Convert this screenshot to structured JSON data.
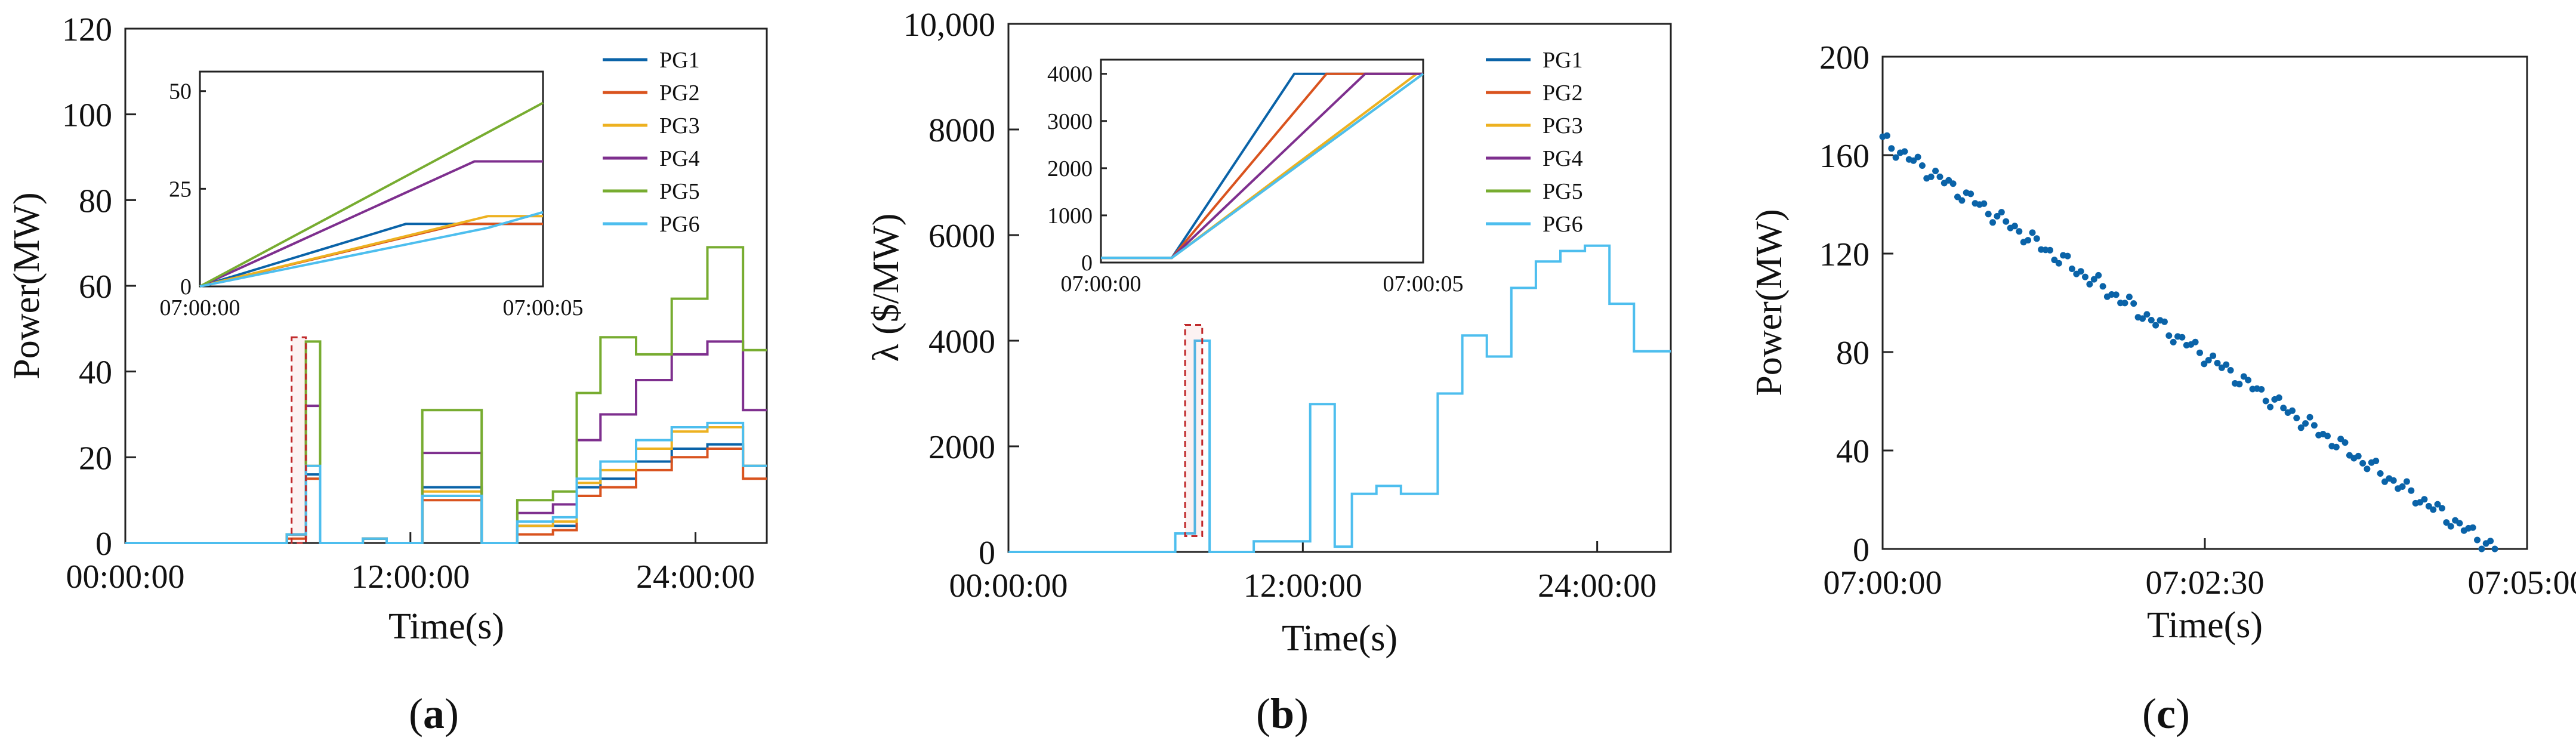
{
  "chart_data": [
    {
      "id": "a",
      "type": "line",
      "panel_label": "a",
      "xlabel": "Time(s)",
      "ylabel": "Power(MW)",
      "xlim": [
        0,
        27
      ],
      "ylim": [
        0,
        120
      ],
      "xticks": [
        {
          "v": 0,
          "label": "00:00:00"
        },
        {
          "v": 12,
          "label": "12:00:00"
        },
        {
          "v": 24,
          "label": "24:00:00"
        }
      ],
      "yticks": [
        0,
        20,
        40,
        60,
        80,
        100,
        120
      ],
      "series": [
        {
          "name": "PG1",
          "color": "#0a63a8",
          "x": [
            0,
            6.8,
            6.8,
            7.6,
            7.6,
            8.2,
            8.2,
            10,
            10,
            11,
            11,
            12.5,
            12.5,
            15,
            15,
            16.5,
            16.5,
            18,
            18,
            19,
            19,
            20,
            20,
            21.5,
            21.5,
            23,
            23,
            24.5,
            24.5,
            26,
            26,
            27
          ],
          "y": [
            0,
            0,
            2,
            2,
            16,
            16,
            0,
            0,
            1,
            1,
            0,
            0,
            13,
            13,
            0,
            0,
            4,
            4,
            4,
            4,
            13,
            13,
            15,
            15,
            19,
            19,
            22,
            22,
            23,
            23,
            18,
            18
          ]
        },
        {
          "name": "PG2",
          "color": "#d9531e",
          "x": [
            0,
            6.8,
            6.8,
            7.6,
            7.6,
            8.2,
            8.2,
            10,
            10,
            11,
            11,
            12.5,
            12.5,
            15,
            15,
            16.5,
            16.5,
            18,
            18,
            19,
            19,
            20,
            20,
            21.5,
            21.5,
            23,
            23,
            24.5,
            24.5,
            26,
            26,
            27
          ],
          "y": [
            0,
            0,
            1,
            1,
            15,
            15,
            0,
            0,
            1,
            1,
            0,
            0,
            10,
            10,
            0,
            0,
            2,
            2,
            3,
            3,
            11,
            11,
            13,
            13,
            17,
            17,
            20,
            20,
            22,
            22,
            15,
            15
          ]
        },
        {
          "name": "PG3",
          "color": "#edb120",
          "x": [
            0,
            6.8,
            6.8,
            7.6,
            7.6,
            8.2,
            8.2,
            10,
            10,
            11,
            11,
            12.5,
            12.5,
            15,
            15,
            16.5,
            16.5,
            18,
            18,
            19,
            19,
            20,
            20,
            21.5,
            21.5,
            23,
            23,
            24.5,
            24.5,
            26,
            26,
            27
          ],
          "y": [
            0,
            0,
            2,
            2,
            18,
            18,
            0,
            0,
            1,
            1,
            0,
            0,
            12,
            12,
            0,
            0,
            4,
            4,
            5,
            5,
            14,
            14,
            17,
            17,
            22,
            22,
            26,
            26,
            27,
            27,
            18,
            18
          ]
        },
        {
          "name": "PG4",
          "color": "#7e2f8e",
          "x": [
            0,
            6.8,
            6.8,
            7.6,
            7.6,
            8.2,
            8.2,
            10,
            10,
            11,
            11,
            12.5,
            12.5,
            15,
            15,
            16.5,
            16.5,
            18,
            18,
            19,
            19,
            20,
            20,
            21.5,
            21.5,
            23,
            23,
            24.5,
            24.5,
            26,
            26,
            27
          ],
          "y": [
            0,
            0,
            2,
            2,
            32,
            32,
            0,
            0,
            1,
            1,
            0,
            0,
            21,
            21,
            0,
            0,
            7,
            7,
            9,
            9,
            24,
            24,
            30,
            30,
            38,
            38,
            44,
            44,
            47,
            47,
            31,
            31
          ]
        },
        {
          "name": "PG5",
          "color": "#77ac30",
          "x": [
            0,
            6.8,
            6.8,
            7.6,
            7.6,
            8.2,
            8.2,
            10,
            10,
            11,
            11,
            12.5,
            12.5,
            15,
            15,
            16.5,
            16.5,
            18,
            18,
            19,
            19,
            20,
            20,
            21.5,
            21.5,
            23,
            23,
            24.5,
            24.5,
            26,
            26,
            27
          ],
          "y": [
            0,
            0,
            2,
            2,
            47,
            47,
            0,
            0,
            1,
            1,
            0,
            0,
            31,
            31,
            0,
            0,
            10,
            10,
            12,
            12,
            35,
            35,
            48,
            48,
            44,
            44,
            57,
            57,
            69,
            69,
            45,
            45
          ]
        },
        {
          "name": "PG6",
          "color": "#4dbeee",
          "x": [
            0,
            6.8,
            6.8,
            7.6,
            7.6,
            8.2,
            8.2,
            10,
            10,
            11,
            11,
            12.5,
            12.5,
            15,
            15,
            16.5,
            16.5,
            18,
            18,
            19,
            19,
            20,
            20,
            21.5,
            21.5,
            23,
            23,
            24.5,
            24.5,
            26,
            26,
            27
          ],
          "y": [
            0,
            0,
            2,
            2,
            18,
            18,
            0,
            0,
            1,
            1,
            0,
            0,
            11,
            11,
            0,
            0,
            5,
            5,
            6,
            6,
            15,
            15,
            19,
            19,
            24,
            24,
            27,
            27,
            28,
            28,
            18,
            18
          ]
        }
      ],
      "highlight_box": {
        "x": [
          7.0,
          7.6
        ],
        "y": [
          0,
          48
        ]
      },
      "inset": {
        "xlim": [
          0,
          5
        ],
        "ylim": [
          0,
          55
        ],
        "xticks": [
          {
            "v": 0,
            "label": "07:00:00"
          },
          {
            "v": 5,
            "label": "07:00:05"
          }
        ],
        "yticks": [
          0,
          25,
          50
        ],
        "series": [
          {
            "name": "PG1",
            "color": "#0a63a8",
            "x": [
              0,
              3,
              5
            ],
            "y": [
              0,
              16,
              16
            ]
          },
          {
            "name": "PG2",
            "color": "#d9531e",
            "x": [
              0,
              3.8,
              5
            ],
            "y": [
              0,
              16,
              16
            ]
          },
          {
            "name": "PG3",
            "color": "#edb120",
            "x": [
              0,
              4.2,
              5
            ],
            "y": [
              0,
              18,
              18
            ]
          },
          {
            "name": "PG4",
            "color": "#7e2f8e",
            "x": [
              0,
              4,
              5
            ],
            "y": [
              0,
              32,
              32
            ]
          },
          {
            "name": "PG5",
            "color": "#77ac30",
            "x": [
              0,
              5
            ],
            "y": [
              0,
              47
            ]
          },
          {
            "name": "PG6",
            "color": "#4dbeee",
            "x": [
              0,
              4.2,
              5
            ],
            "y": [
              0,
              15,
              19
            ]
          }
        ]
      }
    },
    {
      "id": "b",
      "type": "line",
      "panel_label": "b",
      "xlabel": "Time(s)",
      "ylabel": "λ ($/MW)",
      "xlim": [
        0,
        27
      ],
      "ylim": [
        0,
        10000
      ],
      "xticks": [
        {
          "v": 0,
          "label": "00:00:00"
        },
        {
          "v": 12,
          "label": "12:00:00"
        },
        {
          "v": 24,
          "label": "24:00:00"
        }
      ],
      "yticks": [
        {
          "v": 0,
          "label": "0"
        },
        {
          "v": 2000,
          "label": "2000"
        },
        {
          "v": 4000,
          "label": "4000"
        },
        {
          "v": 6000,
          "label": "6000"
        },
        {
          "v": 8000,
          "label": "8000"
        },
        {
          "v": 10000,
          "label": "10,000"
        }
      ],
      "series": [
        {
          "name": "PG6",
          "color": "#4dbeee",
          "x": [
            0,
            6.8,
            6.8,
            7.6,
            7.6,
            8.2,
            8.2,
            10,
            10,
            12.3,
            12.3,
            13.3,
            13.3,
            14,
            14,
            15,
            15,
            16,
            16,
            17.5,
            17.5,
            18.5,
            18.5,
            19.5,
            19.5,
            20.5,
            20.5,
            21.5,
            21.5,
            22.5,
            22.5,
            23.5,
            23.5,
            24.5,
            24.5,
            25.5,
            25.5,
            27
          ],
          "y": [
            0,
            0,
            350,
            350,
            4000,
            4000,
            0,
            0,
            200,
            200,
            2800,
            2800,
            100,
            100,
            1100,
            1100,
            1250,
            1250,
            1100,
            1100,
            3000,
            3000,
            4100,
            4100,
            3700,
            3700,
            5000,
            5000,
            5500,
            5500,
            5700,
            5700,
            5800,
            5800,
            4700,
            4700,
            3800,
            3800
          ]
        }
      ],
      "highlight_box": {
        "x": [
          7.2,
          7.9
        ],
        "y": [
          300,
          4300
        ]
      },
      "inset": {
        "xlim": [
          0,
          5
        ],
        "ylim": [
          0,
          4300
        ],
        "xticks": [
          {
            "v": 0,
            "label": "07:00:00"
          },
          {
            "v": 5,
            "label": "07:00:05"
          }
        ],
        "yticks": [
          0,
          1000,
          2000,
          3000,
          4000
        ],
        "series": [
          {
            "name": "PG1",
            "color": "#0a63a8",
            "x": [
              0,
              1.1,
              1.1,
              3,
              5
            ],
            "y": [
              100,
              100,
              100,
              4000,
              4000
            ]
          },
          {
            "name": "PG2",
            "color": "#d9531e",
            "x": [
              0,
              1.1,
              1.1,
              3.5,
              5
            ],
            "y": [
              100,
              100,
              100,
              4000,
              4000
            ]
          },
          {
            "name": "PG3",
            "color": "#edb120",
            "x": [
              0,
              1.1,
              1.1,
              4.9,
              5
            ],
            "y": [
              100,
              100,
              100,
              4000,
              4000
            ]
          },
          {
            "name": "PG4",
            "color": "#7e2f8e",
            "x": [
              0,
              1.1,
              1.1,
              4.1,
              5
            ],
            "y": [
              100,
              100,
              100,
              4000,
              4000
            ]
          },
          {
            "name": "PG5",
            "color": "#77ac30",
            "x": [
              0,
              1.1,
              1.1,
              5
            ],
            "y": [
              100,
              100,
              100,
              4000
            ]
          },
          {
            "name": "PG6",
            "color": "#4dbeee",
            "x": [
              0,
              1.1,
              1.1,
              5
            ],
            "y": [
              100,
              100,
              100,
              4000
            ]
          }
        ]
      }
    },
    {
      "id": "c",
      "type": "scatter",
      "panel_label": "c",
      "xlabel": "Time(s)",
      "ylabel": "Power(MW)",
      "xlim": [
        0,
        300
      ],
      "ylim": [
        0,
        200
      ],
      "xticks": [
        {
          "v": 0,
          "label": "07:00:00"
        },
        {
          "v": 150,
          "label": "07:02:30"
        },
        {
          "v": 300,
          "label": "07:05:00"
        }
      ],
      "yticks": [
        0,
        40,
        80,
        120,
        160,
        200
      ],
      "point_color": "#0a63a8",
      "x_start": 0,
      "x_end": 285,
      "y_start": 166,
      "y_end": 0,
      "n_points": 140
    }
  ],
  "legend": [
    "PG1",
    "PG2",
    "PG3",
    "PG4",
    "PG5",
    "PG6"
  ]
}
